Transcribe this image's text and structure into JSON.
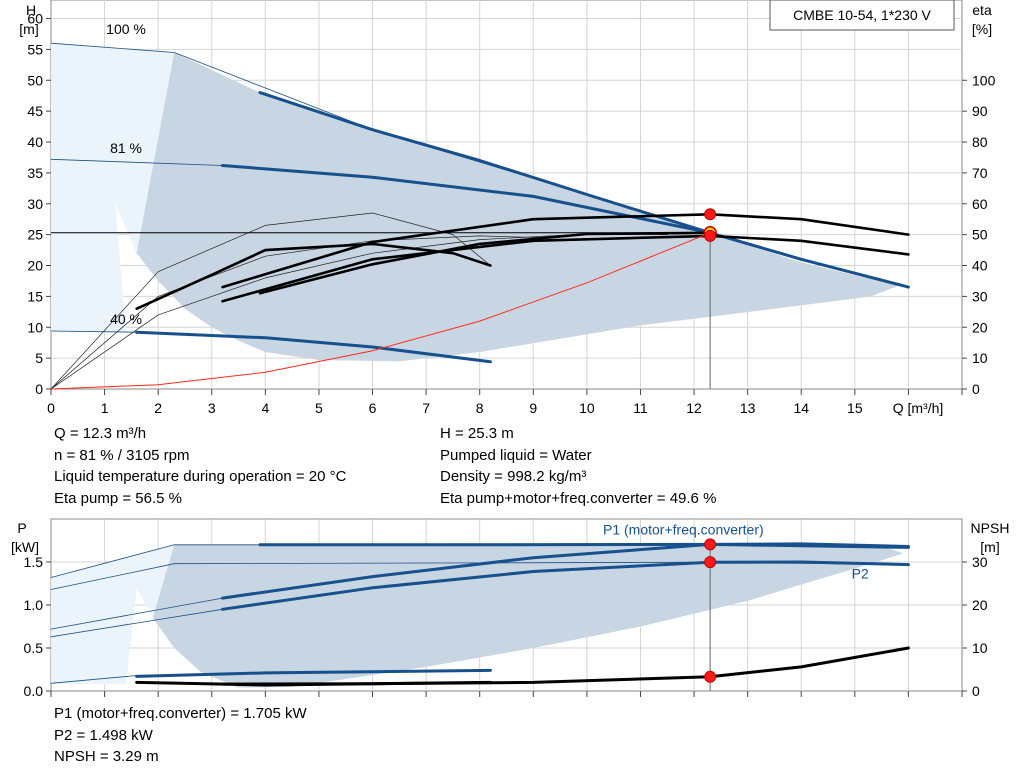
{
  "info_top": {
    "left": [
      "Q = 12.3 m³/h",
      "n = 81 % / 3105 rpm",
      "Liquid temperature during operation = 20 °C",
      "Eta pump = 56.5 %"
    ],
    "right": [
      "H = 25.3 m",
      "Pumped liquid = Water",
      "Density = 998.2 kg/m³",
      "Eta pump+motor+freq.converter = 49.6 %"
    ]
  },
  "info_bottom": [
    "P1 (motor+freq.converter) = 1.705 kW",
    "P2 = 1.498 kW",
    "NPSH = 3.29 m"
  ],
  "chart_data": [
    {
      "type": "line",
      "title": "CMBE 10-54, 1*230 V",
      "xlabel": "Q [m³/h]",
      "ylabel": "H [m]",
      "y2label": "eta [%]",
      "xlim": [
        0,
        17
      ],
      "ylim": [
        0,
        63
      ],
      "y2lim": [
        0,
        126
      ],
      "xticks": [
        0,
        1,
        2,
        3,
        4,
        5,
        6,
        7,
        8,
        9,
        10,
        11,
        12,
        13,
        14,
        15
      ],
      "yticks": [
        0,
        5,
        10,
        15,
        20,
        25,
        30,
        35,
        40,
        45,
        50,
        55,
        60
      ],
      "y2ticks": [
        0,
        10,
        20,
        30,
        40,
        50,
        60,
        70,
        80,
        90,
        100
      ],
      "grid": true,
      "speed_labels": [
        {
          "text": "100 %",
          "x": 1.4,
          "y": 57.5
        },
        {
          "text": "81 %",
          "x": 1.4,
          "y": 38.2
        },
        {
          "text": "40 %",
          "x": 1.4,
          "y": 10.5
        }
      ],
      "envelope": {
        "x": [
          0,
          2.3,
          3.9,
          6,
          8,
          10,
          12.3,
          14,
          15.2,
          15.9,
          15.3,
          13.5,
          11,
          8,
          6.5,
          5,
          4,
          3.5,
          3,
          2.5,
          2,
          1.6,
          1.2,
          1.4,
          0
        ],
        "y": [
          56,
          54.5,
          48,
          42,
          37,
          31.5,
          25.3,
          20.5,
          18,
          17,
          15,
          13,
          10.3,
          6,
          4.5,
          4.7,
          6,
          7.8,
          10,
          13,
          17.5,
          22,
          30,
          9.2,
          9.2
        ]
      },
      "series": [
        {
          "name": "100 % head",
          "style": "thin-blue",
          "x": [
            0,
            2.3,
            6,
            10,
            12.3,
            14,
            16
          ],
          "y": [
            56,
            54.5,
            42,
            31.5,
            25.3,
            21,
            16.5
          ]
        },
        {
          "name": "81 % head",
          "style": "thin-blue",
          "x": [
            0,
            3.2,
            6,
            9,
            12.3,
            14,
            16
          ],
          "y": [
            37.2,
            36.2,
            34.3,
            31.2,
            25.3,
            21,
            16.5
          ]
        },
        {
          "name": "40 % head",
          "style": "thin-blue",
          "x": [
            0,
            1.6,
            4,
            6,
            8.2
          ],
          "y": [
            9.4,
            9.2,
            8.3,
            6.8,
            4.4
          ]
        },
        {
          "name": "81 % head op",
          "style": "thick-blue",
          "x": [
            3.2,
            6,
            9,
            12.3,
            14,
            16
          ],
          "y": [
            36.2,
            34.3,
            31.2,
            25.3,
            21,
            16.5
          ]
        },
        {
          "name": "100 % head op",
          "style": "thick-blue",
          "x": [
            3.9,
            6,
            8,
            10,
            12.3
          ],
          "y": [
            48,
            42,
            37,
            31.5,
            25.3
          ]
        },
        {
          "name": "40 % head op",
          "style": "thick-blue",
          "x": [
            1.6,
            4,
            6,
            8.2
          ],
          "y": [
            9.2,
            8.3,
            6.8,
            4.4
          ]
        },
        {
          "name": "eta 100 % thin",
          "style": "thin-black",
          "x": [
            0,
            2,
            4,
            6,
            7.5,
            8.2
          ],
          "y": [
            0,
            19,
            26.5,
            28.5,
            25,
            20
          ]
        },
        {
          "name": "eta 81 % thin",
          "style": "thin-black",
          "x": [
            0,
            2,
            4,
            6,
            8,
            9.2
          ],
          "y": [
            0,
            15,
            21.5,
            24,
            24.8,
            24.5
          ]
        },
        {
          "name": "eta 40 % thin",
          "style": "thin-black",
          "x": [
            0,
            2,
            4,
            6,
            8,
            10,
            11.5
          ],
          "y": [
            0,
            12,
            18,
            22,
            24.2,
            25.1,
            25
          ]
        },
        {
          "name": "eta 100 % thick",
          "style": "thick-black",
          "x": [
            1.6,
            3,
            4,
            6,
            7.5,
            8.2
          ],
          "y": [
            13,
            18.5,
            22.5,
            23.5,
            22,
            20
          ]
        },
        {
          "name": "eta pump",
          "style": "thick-black",
          "x": [
            3.2,
            6,
            9,
            12.3,
            14,
            16
          ],
          "y": [
            16.5,
            23.8,
            27.5,
            28.3,
            27.5,
            25
          ]
        },
        {
          "name": "eta total",
          "style": "thick-black",
          "x": [
            3.2,
            6,
            9,
            12.3,
            14,
            16
          ],
          "y": [
            14.2,
            21,
            24,
            24.8,
            24,
            21.8
          ]
        },
        {
          "name": "eta 40 % thick",
          "style": "thick-black",
          "x": [
            3.9,
            6,
            8,
            10,
            12.3
          ],
          "y": [
            15.5,
            20.2,
            23.5,
            25.1,
            25.3
          ]
        },
        {
          "name": "system curve",
          "style": "red",
          "x": [
            0,
            2,
            4,
            6,
            8,
            10,
            12.3
          ],
          "y": [
            0,
            0.7,
            2.7,
            6.2,
            11,
            17.2,
            25.3
          ]
        }
      ],
      "markers": [
        {
          "x": 12.3,
          "y": 25.3,
          "kind": "duty-yellow"
        },
        {
          "x": 12.3,
          "y": 28.3,
          "kind": "red"
        },
        {
          "x": 12.3,
          "y": 24.8,
          "kind": "red"
        }
      ]
    },
    {
      "type": "line",
      "xlim": [
        0,
        17
      ],
      "ylabel": "P [kW]",
      "y2label": "NPSH [m]",
      "ylim": [
        0,
        2.0
      ],
      "y2lim": [
        0,
        40
      ],
      "yticks": [
        0.0,
        0.5,
        1.0,
        1.5
      ],
      "y2ticks": [
        0,
        10,
        20,
        30
      ],
      "grid": true,
      "envelope": {
        "x": [
          0,
          2.3,
          3.9,
          8,
          12,
          14,
          15.5,
          15.9,
          15.4,
          13,
          11,
          9,
          7,
          5.5,
          4.5,
          3.5,
          2.8,
          2.3,
          1.9,
          1.6,
          1.4,
          0
        ],
        "y": [
          1.32,
          1.7,
          1.7,
          1.72,
          1.72,
          1.72,
          1.69,
          1.6,
          1.5,
          1.05,
          0.75,
          0.5,
          0.28,
          0.14,
          0.05,
          0.04,
          0.22,
          0.5,
          0.85,
          1.2,
          0.08,
          0.08
        ]
      },
      "series": [
        {
          "name": "P1 100 % thin",
          "style": "thin-blue",
          "x": [
            0,
            2.3,
            8,
            12.3,
            16
          ],
          "y": [
            1.32,
            1.7,
            1.7,
            1.705,
            1.67
          ]
        },
        {
          "name": "P2 100 % thin",
          "style": "thin-blue",
          "x": [
            0,
            2.3,
            8,
            12.3,
            16
          ],
          "y": [
            1.18,
            1.48,
            1.49,
            1.498,
            1.47
          ]
        },
        {
          "name": "P1 81 % thin",
          "style": "thin-blue",
          "x": [
            0,
            3.2
          ],
          "y": [
            0.72,
            1.08
          ]
        },
        {
          "name": "P2 81 % thin",
          "style": "thin-blue",
          "x": [
            0,
            3.2
          ],
          "y": [
            0.63,
            0.95
          ]
        },
        {
          "name": "P 40 % thin",
          "style": "thin-blue",
          "x": [
            0,
            1.6,
            8.2
          ],
          "y": [
            0.09,
            0.18,
            0.24
          ]
        },
        {
          "name": "P1 (motor+freq.converter)",
          "style": "thick-blue",
          "x": [
            3.2,
            6,
            9,
            12.3,
            14,
            16
          ],
          "y": [
            1.08,
            1.33,
            1.55,
            1.705,
            1.71,
            1.68
          ]
        },
        {
          "name": "P2",
          "style": "thick-blue",
          "x": [
            3.2,
            6,
            9,
            12.3,
            14,
            16
          ],
          "y": [
            0.95,
            1.2,
            1.39,
            1.498,
            1.5,
            1.47
          ]
        },
        {
          "name": "P1 100 % op",
          "style": "thick-blue",
          "x": [
            3.9,
            8,
            12.3,
            16
          ],
          "y": [
            1.7,
            1.7,
            1.705,
            1.67
          ]
        },
        {
          "name": "P 40 % op",
          "style": "thick-blue",
          "x": [
            1.6,
            4,
            8.2
          ],
          "y": [
            0.17,
            0.21,
            0.24
          ]
        },
        {
          "name": "NPSH",
          "style": "npsh",
          "x": [
            3.2,
            6,
            9,
            12.3,
            14,
            16
          ],
          "y": [
            0.08,
            0.085,
            0.1,
            0.165,
            0.28,
            0.5
          ]
        },
        {
          "name": "NPSH low",
          "style": "npsh",
          "x": [
            1.6,
            4,
            8.2
          ],
          "y": [
            0.1,
            0.07,
            0.1
          ]
        }
      ],
      "series_labels": [
        {
          "text": "P1 (motor+freq.converter)",
          "x": 11.8,
          "y": 1.82
        },
        {
          "text": "P2",
          "x": 15.1,
          "y": 1.31
        }
      ],
      "markers": [
        {
          "x": 12.3,
          "y": 1.705,
          "kind": "red"
        },
        {
          "x": 12.3,
          "y": 1.498,
          "kind": "red"
        },
        {
          "x": 12.3,
          "y": 0.165,
          "kind": "red"
        }
      ]
    }
  ]
}
